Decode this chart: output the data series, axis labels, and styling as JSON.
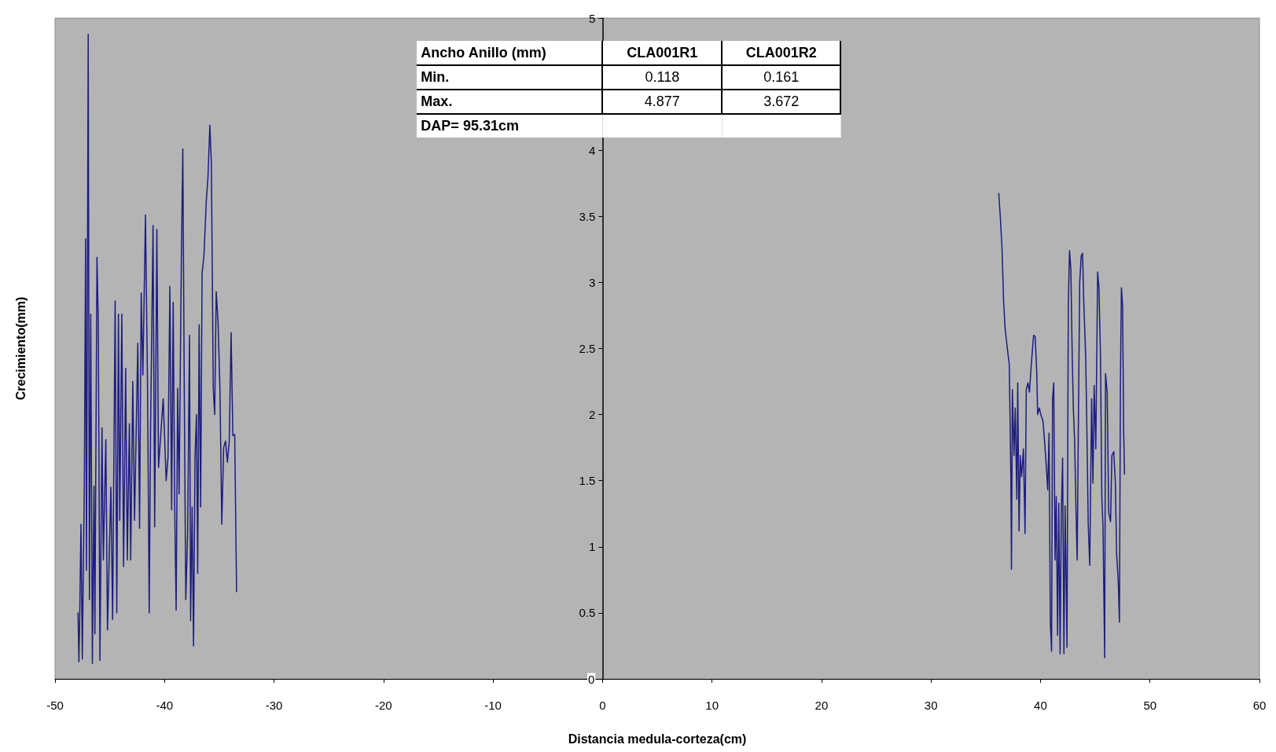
{
  "chart_data": {
    "type": "line",
    "xlabel": "Distancia medula-corteza(cm)",
    "ylabel": "Crecimiento(mm)",
    "annotations": [
      "Ancho Anillo (mm)",
      "CLA001R1",
      "CLA001R2",
      "Min.",
      "0.118",
      "0.161",
      "Max.",
      "4.877",
      "3.672",
      "DAP= 95.31cm"
    ],
    "series": [
      {
        "color": "#1c1c80",
        "x": [
          -47.9,
          -47.82,
          -47.75,
          -47.63,
          -47.51,
          -47.32,
          -47.21,
          -47.13,
          -46.97,
          -46.86,
          -46.74,
          -46.59,
          -46.44,
          -46.36,
          -46.17,
          -46.05,
          -45.9,
          -45.71,
          -45.59,
          -45.36,
          -45.21,
          -44.9,
          -44.74,
          -44.51,
          -44.36,
          -44.21,
          -44.09,
          -43.9,
          -43.74,
          -43.55,
          -43.4,
          -43.21,
          -43.09,
          -42.9,
          -42.74,
          -42.44,
          -42.28,
          -42.13,
          -41.98,
          -41.74,
          -41.55,
          -41.4,
          -41.28,
          -41.05,
          -40.9,
          -40.7,
          -40.55,
          -40.12,
          -39.85,
          -39.68,
          -39.51,
          -39.35,
          -39.21,
          -39.07,
          -38.94,
          -38.8,
          -38.67,
          -38.46,
          -38.33,
          -38.19,
          -38.06,
          -37.89,
          -37.72,
          -37.62,
          -37.48,
          -37.35,
          -37.21,
          -37.08,
          -36.97,
          -36.84,
          -36.7,
          -36.57,
          -36.4,
          -36.19,
          -36.03,
          -35.86,
          -35.72,
          -35.55,
          -35.42,
          -35.28,
          -35.11,
          -34.94,
          -34.77,
          -34.6,
          -34.43,
          -34.26,
          -34.09,
          -33.92,
          -33.76,
          -33.59,
          -33.42
        ],
        "values": [
          0.5,
          0.13,
          0.45,
          1.17,
          0.15,
          1.5,
          3.33,
          0.82,
          4.877,
          0.6,
          2.76,
          0.118,
          1.46,
          0.34,
          3.19,
          2.7,
          0.14,
          1.9,
          0.9,
          1.81,
          0.37,
          1.45,
          0.45,
          2.86,
          0.5,
          2.76,
          1.2,
          2.76,
          0.85,
          2.35,
          0.9,
          1.93,
          0.9,
          2.25,
          1.2,
          2.54,
          1.14,
          2.92,
          2.3,
          3.51,
          2.2,
          0.5,
          1.85,
          3.43,
          1.15,
          3.4,
          1.6,
          2.12,
          1.5,
          1.68,
          2.97,
          1.28,
          2.85,
          1.3,
          0.52,
          2.2,
          1.4,
          3.2,
          4.01,
          2.1,
          0.6,
          1.1,
          2.6,
          0.44,
          1.3,
          0.25,
          1.7,
          2.0,
          0.8,
          2.68,
          1.3,
          3.07,
          3.2,
          3.61,
          3.8,
          4.19,
          3.9,
          2.2,
          2.0,
          2.93,
          2.7,
          2.2,
          1.17,
          1.75,
          1.8,
          1.64,
          1.8,
          2.62,
          1.84,
          1.85,
          0.66
        ]
      },
      {
        "color": "#1c1c80",
        "x": [
          36.19,
          36.34,
          36.48,
          36.63,
          36.77,
          37.0,
          37.15,
          37.29,
          37.35,
          37.43,
          37.58,
          37.69,
          37.84,
          37.92,
          38.04,
          38.15,
          38.27,
          38.44,
          38.59,
          38.7,
          38.85,
          38.99,
          39.16,
          39.37,
          39.51,
          39.65,
          39.74,
          39.89,
          40.03,
          40.23,
          40.38,
          40.52,
          40.66,
          40.78,
          40.9,
          41.01,
          41.1,
          41.21,
          41.33,
          41.44,
          41.56,
          41.67,
          41.79,
          41.9,
          42.02,
          42.14,
          42.25,
          42.42,
          42.54,
          42.65,
          42.77,
          42.89,
          43.0,
          43.12,
          43.26,
          43.35,
          43.46,
          43.58,
          43.72,
          43.84,
          43.95,
          44.13,
          44.24,
          44.36,
          44.5,
          44.67,
          44.79,
          44.9,
          45.05,
          45.22,
          45.34,
          45.48,
          45.6,
          45.71,
          45.86,
          45.94,
          46.09,
          46.23,
          46.4,
          46.52,
          46.69,
          46.84,
          46.95,
          47.1,
          47.21,
          47.3,
          47.39,
          47.5,
          47.59,
          47.67
        ],
        "values": [
          3.672,
          3.48,
          3.27,
          2.86,
          2.65,
          2.48,
          2.38,
          1.55,
          0.83,
          2.19,
          1.69,
          2.05,
          1.36,
          2.24,
          1.12,
          1.69,
          1.53,
          1.74,
          1.1,
          2.19,
          2.24,
          2.17,
          2.38,
          2.6,
          2.59,
          2.34,
          2.0,
          2.05,
          2.0,
          1.95,
          1.79,
          1.62,
          1.43,
          1.86,
          0.43,
          0.21,
          2.12,
          2.24,
          0.9,
          1.38,
          0.33,
          1.33,
          0.19,
          1.24,
          1.67,
          0.19,
          1.31,
          0.24,
          2.84,
          3.24,
          3.1,
          2.48,
          2.05,
          1.79,
          1.21,
          0.9,
          1.93,
          3.0,
          3.2,
          3.22,
          2.86,
          2.43,
          1.86,
          1.17,
          0.86,
          2.12,
          1.48,
          2.22,
          1.74,
          3.08,
          2.96,
          2.43,
          1.38,
          1.14,
          0.161,
          2.31,
          2.17,
          1.26,
          1.19,
          1.69,
          1.72,
          1.48,
          0.95,
          0.74,
          0.43,
          2.24,
          2.96,
          2.82,
          1.91,
          1.55
        ]
      }
    ],
    "xlim": [
      -50,
      60
    ],
    "xticks": [
      -50,
      -40,
      -30,
      -20,
      -10,
      0,
      10,
      20,
      30,
      40,
      50,
      60
    ],
    "ylim": [
      0,
      5
    ],
    "yticks": [
      0,
      0.5,
      1,
      1.5,
      2,
      2.5,
      3,
      3.5,
      4,
      {
        "value": 4.5,
        "label": null
      },
      5
    ],
    "marker": "none"
  }
}
